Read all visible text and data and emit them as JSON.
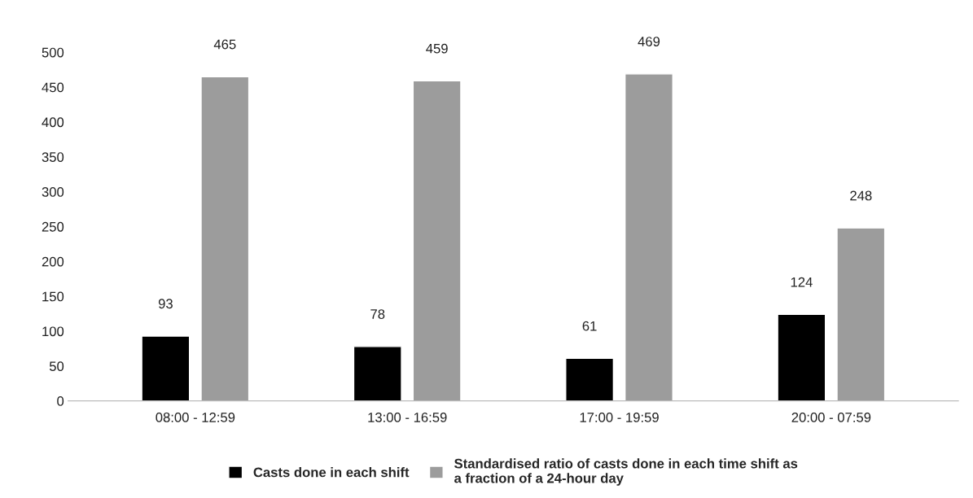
{
  "chart_data": {
    "type": "bar",
    "categories": [
      "08:00 - 12:59",
      "13:00 - 16:59",
      "17:00 - 19:59",
      "20:00 - 07:59"
    ],
    "series": [
      {
        "name": "Casts done in each shift",
        "color": "#000000",
        "values": [
          93,
          78,
          61,
          124
        ]
      },
      {
        "name": "Standardised ratio of casts done in each time shift as\na fraction of a 24-hour day",
        "color": "#9c9c9c",
        "values": [
          465,
          459,
          469,
          248
        ]
      }
    ],
    "ylim": [
      0,
      500
    ],
    "yticks": [
      0,
      50,
      100,
      150,
      200,
      250,
      300,
      350,
      400,
      450,
      500
    ],
    "data_labels": true,
    "grid": false,
    "legend": "bottom"
  }
}
